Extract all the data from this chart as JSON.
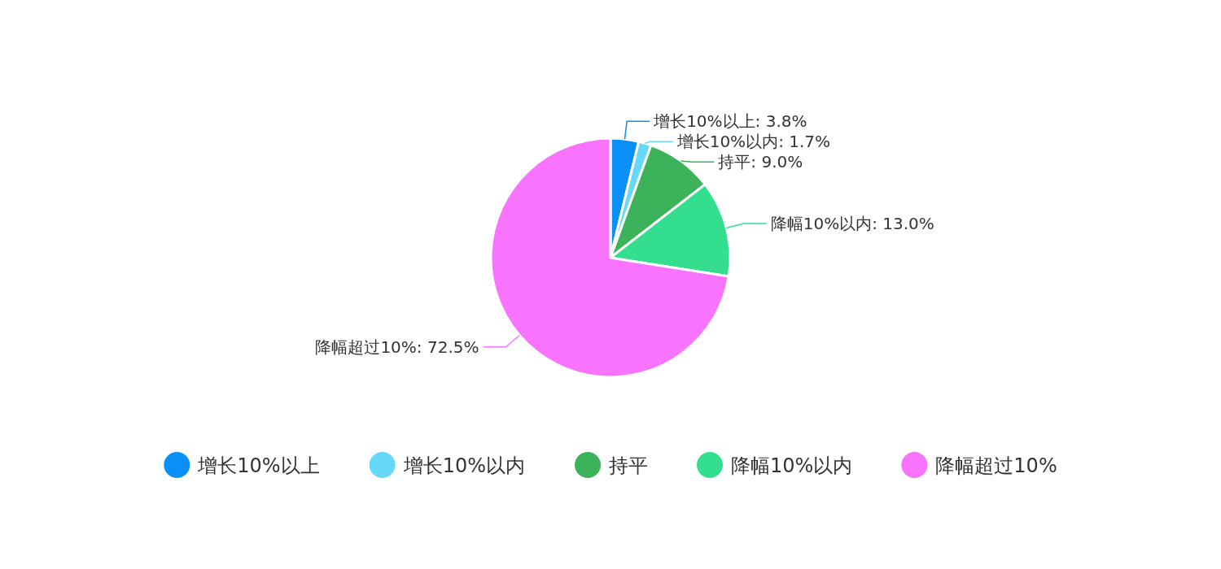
{
  "chart_data": {
    "type": "pie",
    "categories": [
      "增长10%以上",
      "增长10%以内",
      "持平",
      "降幅10%以内",
      "降幅超过10%"
    ],
    "values": [
      3.8,
      1.7,
      9.0,
      13.0,
      72.5
    ],
    "value_labels": [
      "增长10%以上: 3.8%",
      "增长10%以内: 1.7%",
      "持平: 9.0%",
      "降幅10%以内: 13.0%",
      "降幅超过10%: 72.5%"
    ],
    "colors": [
      "#0a8ff7",
      "#66d9fb",
      "#3cb35a",
      "#33df8f",
      "#f874fe"
    ],
    "legend": "bottom"
  }
}
